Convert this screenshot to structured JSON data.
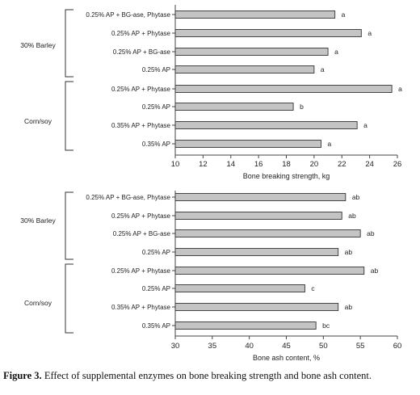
{
  "caption": {
    "label": "Figure 3.",
    "text": "Effect of supplemental enzymes on bone breaking strength and bone ash content."
  },
  "chart_data": [
    {
      "type": "bar",
      "orientation": "horizontal",
      "groups": [
        {
          "name": "30% Barley",
          "categories": [
            "0.25% AP + BG-ase, Phytase",
            "0.25% AP + Phytase",
            "0.25% AP + BG-ase",
            "0.25% AP"
          ]
        },
        {
          "name": "Corn/soy",
          "categories": [
            "0.25% AP + Phytase",
            "0.25% AP",
            "0.35% AP + Phytase",
            "0.35% AP"
          ]
        }
      ],
      "categories": [
        "0.25% AP + BG-ase, Phytase",
        "0.25% AP + Phytase",
        "0.25% AP + BG-ase",
        "0.25% AP",
        "0.25% AP + Phytase",
        "0.25% AP",
        "0.35% AP + Phytase",
        "0.35% AP"
      ],
      "values": [
        21.5,
        23.4,
        21.0,
        20.0,
        25.6,
        18.5,
        23.1,
        20.5
      ],
      "data_labels": [
        "a",
        "a",
        "a",
        "a",
        "a",
        "b",
        "a",
        "a"
      ],
      "xlabel": "Bone breaking strength, kg",
      "xlim": [
        10,
        26
      ],
      "xticks": [
        10,
        12,
        14,
        16,
        18,
        20,
        22,
        24,
        26
      ],
      "grid": false
    },
    {
      "type": "bar",
      "orientation": "horizontal",
      "groups": [
        {
          "name": "30% Barley",
          "categories": [
            "0.25% AP + BG-ase, Phytase",
            "0.25% AP + Phytase",
            "0.25% AP + BG-ase",
            "0.25% AP"
          ]
        },
        {
          "name": "Corn/soy",
          "categories": [
            "0.25% AP + Phytase",
            "0.25% AP",
            "0.35% AP + Phytase",
            "0.35% AP"
          ]
        }
      ],
      "categories": [
        "0.25% AP + BG-ase, Phytase",
        "0.25% AP + Phytase",
        "0.25% AP + BG-ase",
        "0.25% AP",
        "0.25% AP + Phytase",
        "0.25% AP",
        "0.35% AP + Phytase",
        "0.35% AP"
      ],
      "values": [
        53,
        52.5,
        55,
        52,
        55.5,
        47.5,
        52,
        49
      ],
      "data_labels": [
        "ab",
        "ab",
        "ab",
        "ab",
        "ab",
        "c",
        "ab",
        "bc"
      ],
      "xlabel": "Bone ash content, %",
      "xlim": [
        30,
        60
      ],
      "xticks": [
        30,
        35,
        40,
        45,
        50,
        55,
        60
      ],
      "grid": false
    }
  ]
}
